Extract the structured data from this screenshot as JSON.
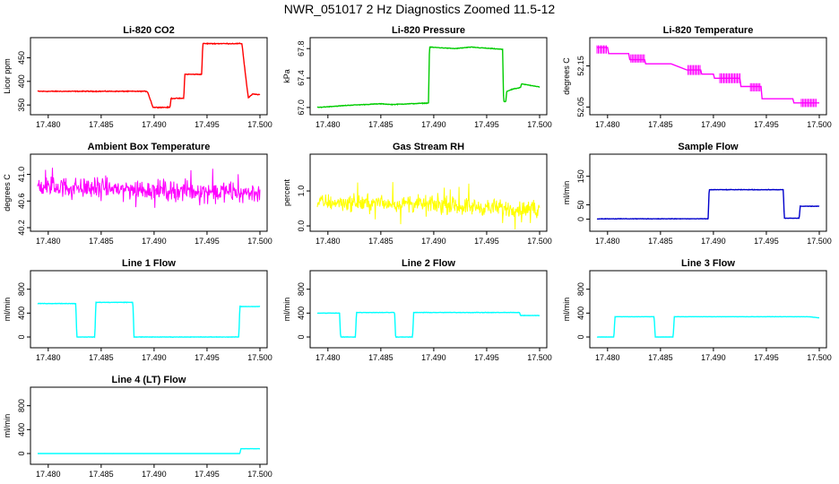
{
  "page": {
    "title": "NWR_051017  2 Hz Diagnostics Zoomed 11.5-12"
  },
  "chart_data": [
    {
      "type": "line",
      "title": "Li-820 CO2",
      "ylabel": "Licor ppm",
      "color": "#ff0000",
      "xlim": [
        17.479,
        17.5
      ],
      "ylim": [
        337,
        485
      ],
      "yticks": [
        {
          "v": 350,
          "l": "350"
        },
        {
          "v": 400,
          "l": "400"
        },
        {
          "v": 450,
          "l": "450"
        }
      ],
      "style": "steady",
      "noise": 1.2,
      "x": [
        17.479,
        17.4893,
        17.4894,
        17.4899,
        17.49,
        17.4915,
        17.4916,
        17.4928,
        17.4929,
        17.4945,
        17.4946,
        17.4983,
        17.4986,
        17.4989,
        17.4993,
        17.5
      ],
      "y": [
        379,
        379,
        377,
        345,
        345,
        345,
        364,
        364,
        415,
        415,
        480,
        480,
        420,
        365,
        373,
        372
      ]
    },
    {
      "type": "line",
      "title": "Li-820 Pressure",
      "ylabel": "kPa",
      "color": "#00cc00",
      "xlim": [
        17.479,
        17.5
      ],
      "ylim": [
        66.95,
        67.9
      ],
      "yticks": [
        {
          "v": 67.0,
          "l": "67.0"
        },
        {
          "v": 67.4,
          "l": "67.4"
        },
        {
          "v": 67.8,
          "l": "67.8"
        }
      ],
      "style": "steady",
      "noise": 0.006,
      "x": [
        17.479,
        17.482,
        17.485,
        17.486,
        17.4895,
        17.4896,
        17.492,
        17.4935,
        17.4965,
        17.4966,
        17.4968,
        17.4969,
        17.4975,
        17.4982,
        17.4983,
        17.5
      ],
      "y": [
        67.0,
        67.03,
        67.05,
        67.04,
        67.06,
        67.82,
        67.8,
        67.82,
        67.79,
        67.08,
        67.08,
        67.22,
        67.25,
        67.27,
        67.32,
        67.28
      ]
    },
    {
      "type": "line",
      "title": "Li-820 Temperature",
      "ylabel": "degrees C",
      "color": "#ff00ff",
      "xlim": [
        17.479,
        17.5
      ],
      "ylim": [
        52.04,
        52.21
      ],
      "yticks": [
        {
          "v": 52.05,
          "l": "52.05"
        },
        {
          "v": 52.15,
          "l": "52.15"
        }
      ],
      "style": "steps",
      "noise": 0,
      "x": [
        17.479,
        17.48,
        17.4801,
        17.482,
        17.4821,
        17.4835,
        17.4836,
        17.486,
        17.4875,
        17.4888,
        17.4889,
        17.49,
        17.4901,
        17.4925,
        17.4926,
        17.4945,
        17.4946,
        17.4975,
        17.4976,
        17.5
      ],
      "y": [
        52.195,
        52.195,
        52.18,
        52.18,
        52.165,
        52.165,
        52.155,
        52.155,
        52.14,
        52.14,
        52.13,
        52.13,
        52.12,
        52.12,
        52.1,
        52.1,
        52.07,
        52.07,
        52.06,
        52.06
      ],
      "bands": [
        {
          "x0": 17.479,
          "x1": 17.48,
          "y0": 52.18,
          "y1": 52.2
        },
        {
          "x0": 17.4822,
          "x1": 17.4835,
          "y0": 52.158,
          "y1": 52.178
        },
        {
          "x0": 17.4876,
          "x1": 17.4888,
          "y0": 52.128,
          "y1": 52.152
        },
        {
          "x0": 17.4906,
          "x1": 17.4926,
          "y0": 52.108,
          "y1": 52.132
        },
        {
          "x0": 17.4935,
          "x1": 17.4945,
          "y0": 52.088,
          "y1": 52.108
        },
        {
          "x0": 17.4983,
          "x1": 17.4998,
          "y0": 52.05,
          "y1": 52.07
        }
      ]
    },
    {
      "type": "line",
      "title": "Ambient Box Temperature",
      "ylabel": "degrees C",
      "color": "#ff00ff",
      "xlim": [
        17.479,
        17.5
      ],
      "ylim": [
        40.2,
        41.25
      ],
      "yticks": [
        {
          "v": 40.2,
          "l": "40.2"
        },
        {
          "v": 40.6,
          "l": "40.6"
        },
        {
          "v": 41.0,
          "l": "41.0"
        }
      ],
      "style": "noisy",
      "noise": 0.14,
      "x": [
        17.479,
        17.5
      ],
      "y": [
        40.82,
        40.72
      ]
    },
    {
      "type": "line",
      "title": "Gas Stream RH",
      "ylabel": "percent",
      "color": "#ffff00",
      "xlim": [
        17.479,
        17.5
      ],
      "ylim": [
        -0.05,
        1.95
      ],
      "yticks": [
        {
          "v": 0.0,
          "l": "0.0"
        },
        {
          "v": 1.0,
          "l": "1.0"
        }
      ],
      "style": "noisy",
      "noise": 0.22,
      "x": [
        17.479,
        17.489,
        17.5
      ],
      "y": [
        0.68,
        0.62,
        0.45
      ]
    },
    {
      "type": "line",
      "title": "Sample Flow",
      "ylabel": "ml/min",
      "color": "#0000cc",
      "xlim": [
        17.479,
        17.5
      ],
      "ylim": [
        -30,
        215
      ],
      "yticks": [
        {
          "v": 0,
          "l": "0"
        },
        {
          "v": 50,
          "l": "50"
        },
        {
          "v": 150,
          "l": "150"
        }
      ],
      "style": "steady",
      "noise": 1.2,
      "x": [
        17.479,
        17.4895,
        17.4896,
        17.4966,
        17.4967,
        17.4981,
        17.4982,
        17.5
      ],
      "y": [
        1,
        1,
        103,
        103,
        3,
        3,
        45,
        45
      ]
    },
    {
      "type": "line",
      "title": "Line 1 Flow",
      "ylabel": "ml/min",
      "color": "#00ffff",
      "xlim": [
        17.479,
        17.5
      ],
      "ylim": [
        -120,
        1050
      ],
      "yticks": [
        {
          "v": 0,
          "l": "0"
        },
        {
          "v": 400,
          "l": "400"
        },
        {
          "v": 800,
          "l": "800"
        }
      ],
      "style": "steady",
      "noise": 5,
      "x": [
        17.479,
        17.4826,
        17.4827,
        17.4844,
        17.4845,
        17.488,
        17.4881,
        17.498,
        17.4981,
        17.5
      ],
      "y": [
        560,
        560,
        0,
        0,
        580,
        580,
        0,
        0,
        510,
        510
      ]
    },
    {
      "type": "line",
      "title": "Line 2 Flow",
      "ylabel": "ml/min",
      "color": "#00ffff",
      "xlim": [
        17.479,
        17.5
      ],
      "ylim": [
        -120,
        1050
      ],
      "yticks": [
        {
          "v": 0,
          "l": "0"
        },
        {
          "v": 400,
          "l": "400"
        },
        {
          "v": 800,
          "l": "800"
        }
      ],
      "style": "steady",
      "noise": 5,
      "x": [
        17.479,
        17.4811,
        17.4812,
        17.4826,
        17.4827,
        17.4863,
        17.4864,
        17.488,
        17.4881,
        17.4981,
        17.4982,
        17.5
      ],
      "y": [
        400,
        400,
        0,
        0,
        410,
        410,
        0,
        0,
        410,
        410,
        360,
        360
      ]
    },
    {
      "type": "line",
      "title": "Line 3 Flow",
      "ylabel": "ml/min",
      "color": "#00ffff",
      "xlim": [
        17.479,
        17.5
      ],
      "ylim": [
        -120,
        1050
      ],
      "yticks": [
        {
          "v": 0,
          "l": "0"
        },
        {
          "v": 400,
          "l": "400"
        },
        {
          "v": 800,
          "l": "800"
        }
      ],
      "style": "steady",
      "noise": 2,
      "x": [
        17.479,
        17.4806,
        17.4807,
        17.4844,
        17.4845,
        17.4862,
        17.4863,
        17.499,
        17.5
      ],
      "y": [
        0,
        0,
        340,
        340,
        0,
        0,
        340,
        340,
        320
      ]
    },
    {
      "type": "line",
      "title": "Line 4 (LT) Flow",
      "ylabel": "ml/min",
      "color": "#00ffff",
      "xlim": [
        17.479,
        17.5
      ],
      "ylim": [
        -120,
        1050
      ],
      "yticks": [
        {
          "v": 0,
          "l": "0"
        },
        {
          "v": 400,
          "l": "400"
        },
        {
          "v": 800,
          "l": "800"
        }
      ],
      "style": "steady",
      "noise": 1,
      "x": [
        17.479,
        17.4981,
        17.4982,
        17.5
      ],
      "y": [
        0,
        0,
        80,
        80
      ]
    }
  ],
  "xticks": [
    {
      "v": 17.48,
      "l": "17.480"
    },
    {
      "v": 17.485,
      "l": "17.485"
    },
    {
      "v": 17.49,
      "l": "17.490"
    },
    {
      "v": 17.495,
      "l": "17.495"
    },
    {
      "v": 17.5,
      "l": "17.500"
    }
  ]
}
